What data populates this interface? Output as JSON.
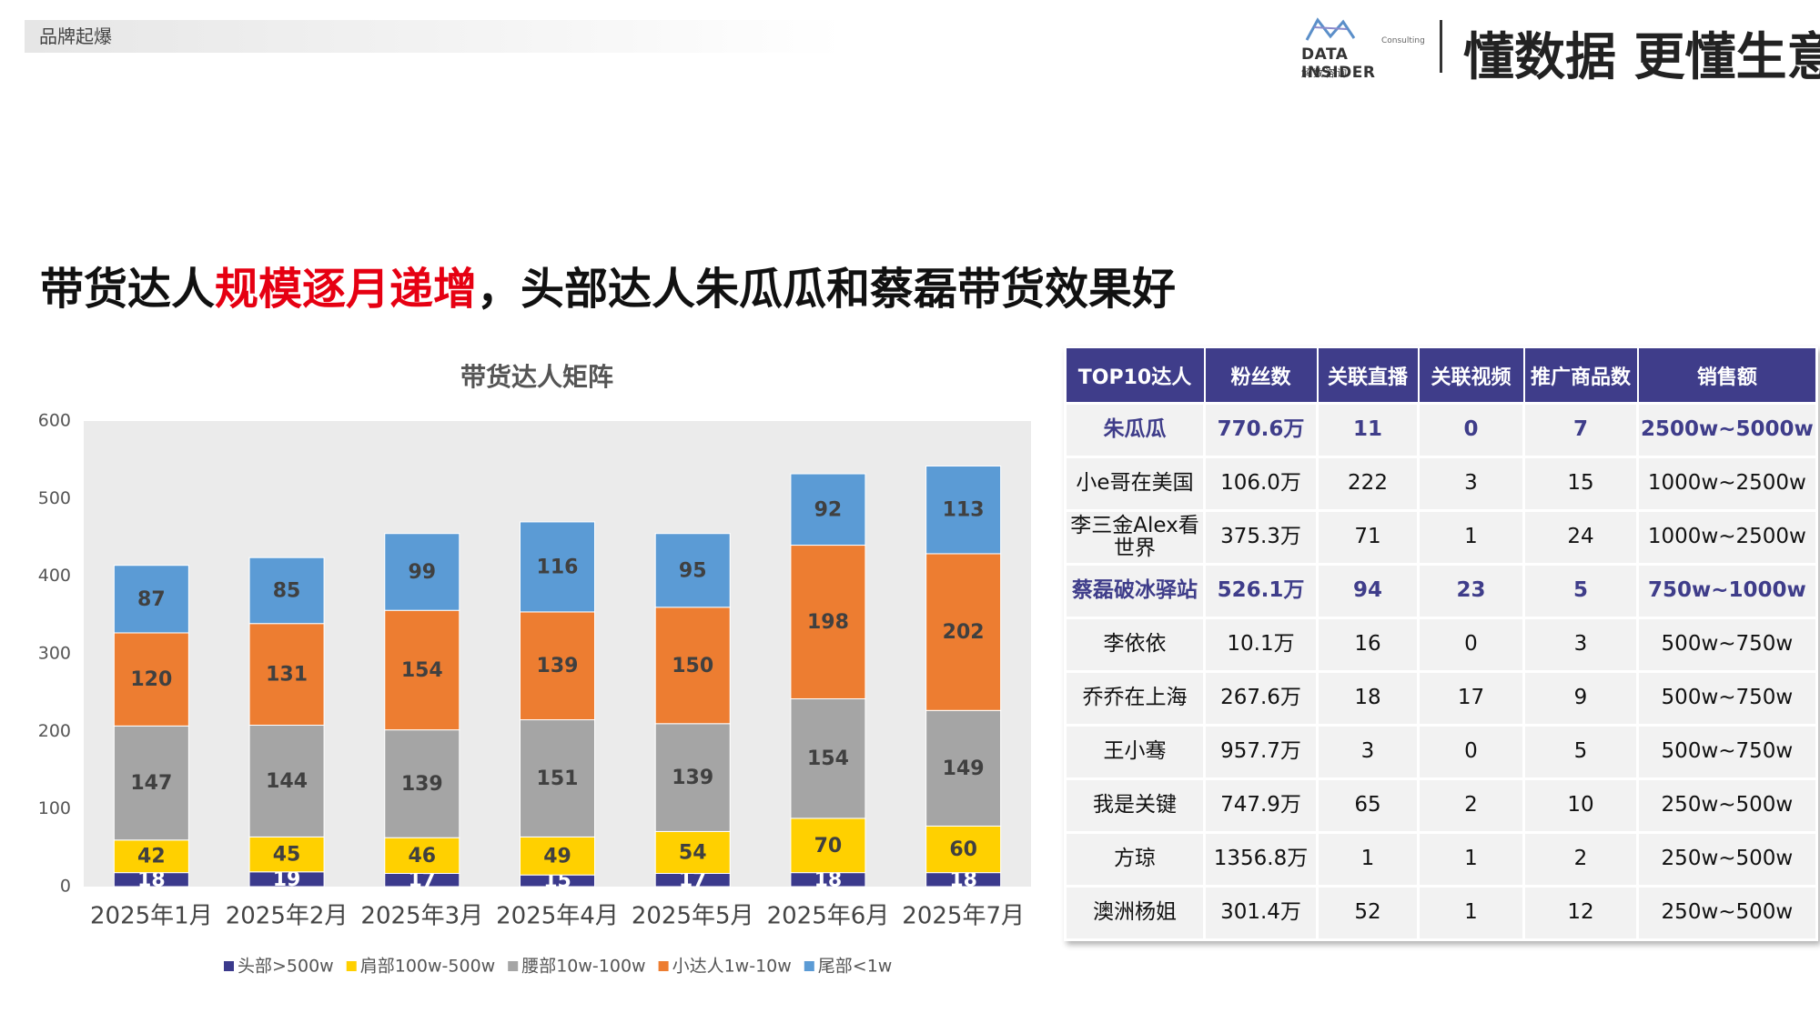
{
  "header": {
    "tag": "品牌起爆",
    "logo_name": "DATA INSIDER",
    "logo_sub": "Consulting",
    "logo_cn": "解数咨询",
    "slogan": "懂数据 更懂生意"
  },
  "headline": [
    "带货达人",
    "规模逐月递增",
    "，头部达人朱瓜瓜和蔡磊带货效果好"
  ],
  "chart_data": {
    "type": "stacked-bar",
    "title": "带货达人矩阵",
    "categories": [
      "2025年1月",
      "2025年2月",
      "2025年3月",
      "2025年4月",
      "2025年5月",
      "2025年6月",
      "2025年7月"
    ],
    "series": [
      {
        "name": "头部>500w",
        "color": "#3b3a8c",
        "values": [
          18,
          19,
          17,
          15,
          17,
          18,
          18
        ]
      },
      {
        "name": "肩部100w-500w",
        "color": "#ffd000",
        "values": [
          42,
          45,
          46,
          49,
          54,
          70,
          60
        ]
      },
      {
        "name": "腰部10w-100w",
        "color": "#a5a5a5",
        "values": [
          147,
          144,
          139,
          151,
          139,
          154,
          149
        ]
      },
      {
        "name": "小达人1w-10w",
        "color": "#ed7d31",
        "values": [
          120,
          131,
          154,
          139,
          150,
          198,
          202
        ]
      },
      {
        "name": "尾部<1w",
        "color": "#5b9bd5",
        "values": [
          87,
          85,
          99,
          116,
          95,
          92,
          113
        ]
      }
    ],
    "ylim": [
      0,
      600
    ],
    "yticks": [
      0,
      100,
      200,
      300,
      400,
      500,
      600
    ],
    "grid": false,
    "legend": "bottom"
  },
  "table": {
    "header": [
      "TOP10达人",
      "粉丝数",
      "关联直播",
      "关联视频",
      "推广商品数",
      "销售额"
    ],
    "rows": [
      [
        "朱瓜瓜",
        "770.6万",
        "11",
        "0",
        "7",
        "2500w~5000w"
      ],
      [
        "小e哥在美国",
        "106.0万",
        "222",
        "3",
        "15",
        "1000w~2500w"
      ],
      [
        "李三金Alex看世界",
        "375.3万",
        "71",
        "1",
        "24",
        "1000w~2500w"
      ],
      [
        "蔡磊破冰驿站",
        "526.1万",
        "94",
        "23",
        "5",
        "750w~1000w"
      ],
      [
        "李依依",
        "10.1万",
        "16",
        "0",
        "3",
        "500w~750w"
      ],
      [
        "乔乔在上海",
        "267.6万",
        "18",
        "17",
        "9",
        "500w~750w"
      ],
      [
        "王小骞",
        "957.7万",
        "3",
        "0",
        "5",
        "500w~750w"
      ],
      [
        "我是关键",
        "747.9万",
        "65",
        "2",
        "10",
        "250w~500w"
      ],
      [
        "方琼",
        "1356.8万",
        "1",
        "1",
        "2",
        "250w~500w"
      ],
      [
        "澳洲杨姐",
        "301.4万",
        "52",
        "1",
        "12",
        "250w~500w"
      ]
    ],
    "highlight_rows": [
      0,
      3
    ]
  }
}
